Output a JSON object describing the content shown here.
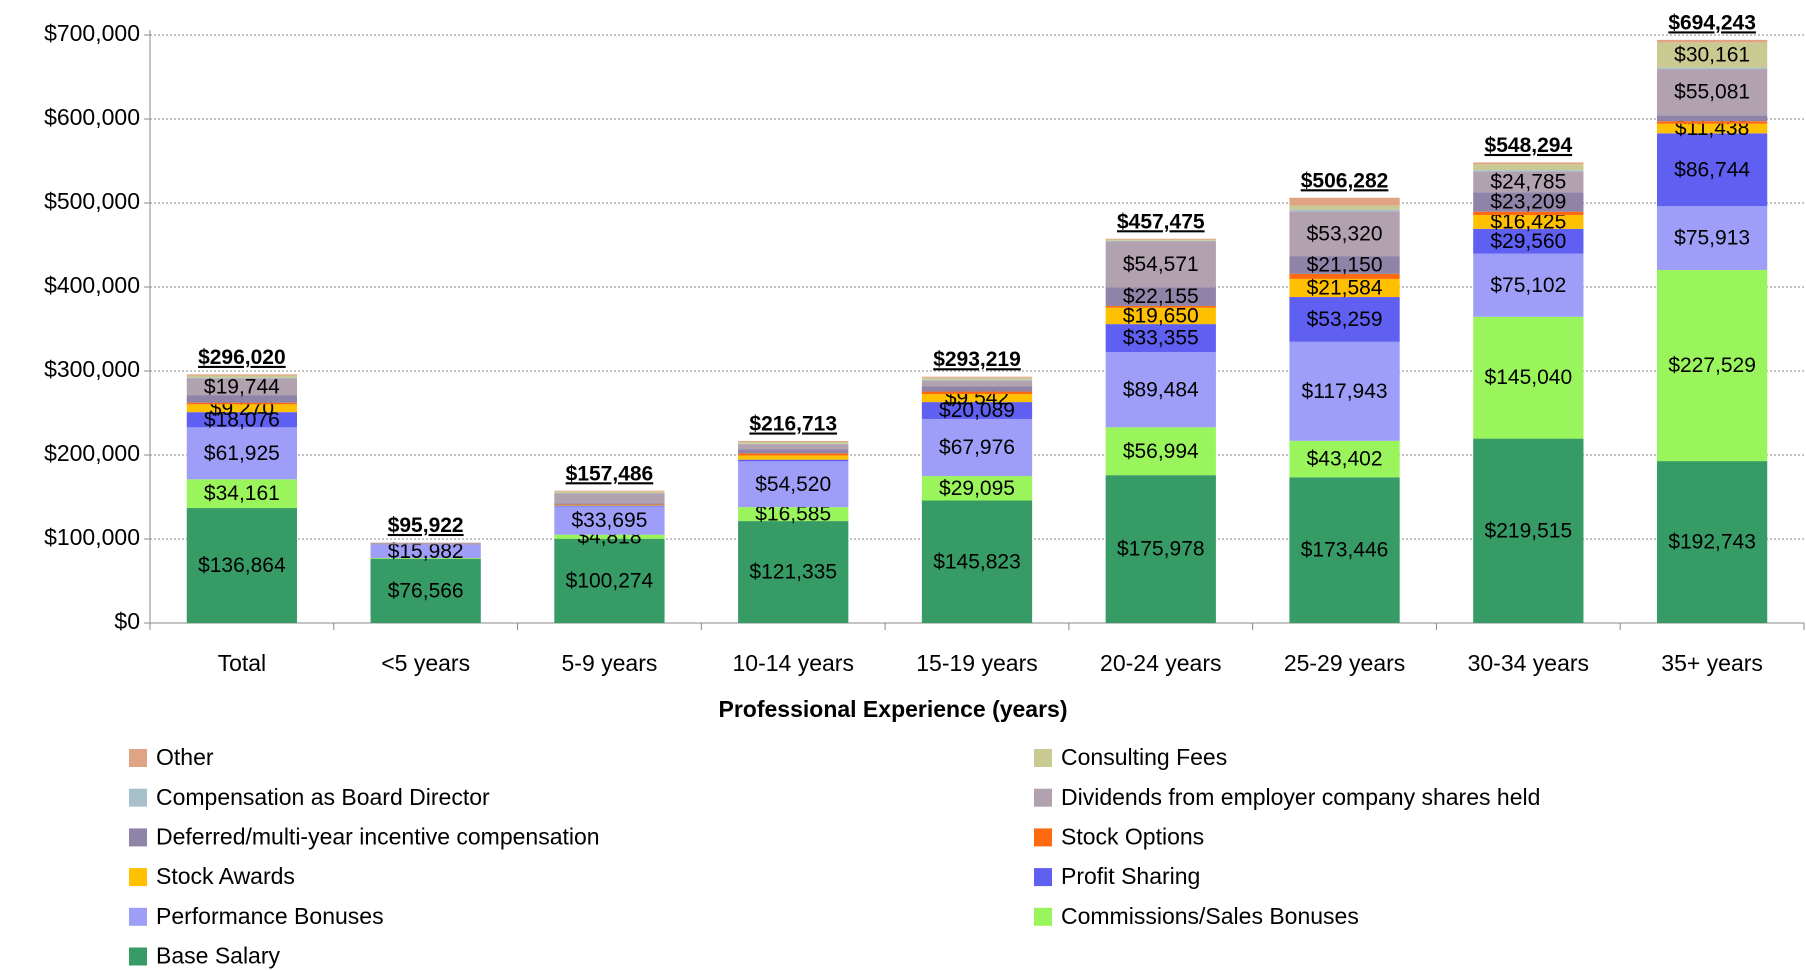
{
  "chart_data": {
    "type": "stacked_bar",
    "x_label": "Professional Experience (years)",
    "categories": [
      "Total",
      "<5 years",
      "5-9 years",
      "10-14 years",
      "15-19 years",
      "20-24 years",
      "25-29 years",
      "30-34 years",
      "35+ years"
    ],
    "ylim": [
      0,
      700000
    ],
    "yticks": [
      {
        "value": 0,
        "label": "$0"
      },
      {
        "value": 100000,
        "label": "$100,000"
      },
      {
        "value": 200000,
        "label": "$200,000"
      },
      {
        "value": 300000,
        "label": "$300,000"
      },
      {
        "value": 400000,
        "label": "$400,000"
      },
      {
        "value": 500000,
        "label": "$500,000"
      },
      {
        "value": 600000,
        "label": "$600,000"
      },
      {
        "value": 700000,
        "label": "$700,000"
      }
    ],
    "grid": true,
    "totals": [
      296020,
      95922,
      157486,
      216713,
      293219,
      457475,
      506282,
      548294,
      694243
    ],
    "total_labels": [
      "$296,020",
      "$95,922",
      "$157,486",
      "$216,713",
      "$293,219",
      "$457,475",
      "$506,282",
      "$548,294",
      "$694,243"
    ],
    "series": [
      {
        "name": "Base Salary",
        "color": "#379b66",
        "values": [
          136864,
          76566,
          100274,
          121335,
          145823,
          175978,
          173446,
          219515,
          192743
        ],
        "value_labels": [
          "$136,864",
          "$76,566",
          "$100,274",
          "$121,335",
          "$145,823",
          "$175,978",
          "$173,446",
          "$219,515",
          "$192,743"
        ]
      },
      {
        "name": "Commissions/Sales Bonuses",
        "color": "#9af55c",
        "values": [
          34161,
          800,
          4818,
          16585,
          29095,
          56994,
          43402,
          145040,
          227529
        ],
        "value_labels": [
          "$34,161",
          null,
          "$4,818",
          "$16,585",
          "$29,095",
          "$56,994",
          "$43,402",
          "$145,040",
          "$227,529"
        ]
      },
      {
        "name": "Performance Bonuses",
        "color": "#9e9ef8",
        "values": [
          61925,
          15982,
          33695,
          54520,
          67976,
          89484,
          117943,
          75102,
          75913
        ],
        "value_labels": [
          "$61,925",
          "$15,982",
          "$33,695",
          "$54,520",
          "$67,976",
          "$89,484",
          "$117,943",
          "$75,102",
          "$75,913"
        ]
      },
      {
        "name": "Profit Sharing",
        "color": "#5f5ff2",
        "values": [
          18076,
          500,
          1000,
          2000,
          20089,
          33355,
          53259,
          29560,
          86744
        ],
        "value_labels": [
          "$18,076",
          null,
          null,
          null,
          "$20,089",
          "$33,355",
          "$53,259",
          "$29,560",
          "$86,744"
        ]
      },
      {
        "name": "Stock Awards",
        "color": "#ffc000",
        "values": [
          9270,
          300,
          800,
          5000,
          9542,
          19650,
          21584,
          16425,
          11438
        ],
        "value_labels": [
          "$9,270",
          null,
          null,
          null,
          "$9,542",
          "$19,650",
          "$21,584",
          "$16,425",
          "$11,438"
        ]
      },
      {
        "name": "Stock Options",
        "color": "#ff6a10",
        "values": [
          2000,
          100,
          500,
          2500,
          3000,
          2000,
          6000,
          4000,
          3000
        ],
        "value_labels": [
          null,
          null,
          null,
          null,
          null,
          null,
          null,
          null,
          null
        ]
      },
      {
        "name": "Deferred/multi-year incentive compensation",
        "color": "#8f84a8",
        "values": [
          9000,
          400,
          1500,
          5000,
          6000,
          22155,
          21150,
          23209,
          7000
        ],
        "value_labels": [
          null,
          null,
          null,
          null,
          null,
          "$22,155",
          "$21,150",
          "$23,209",
          null
        ]
      },
      {
        "name": "Dividends from employer company shares held",
        "color": "#b2a2b0",
        "values": [
          19744,
          900,
          12000,
          6000,
          7000,
          54571,
          53320,
          24785,
          55081
        ],
        "value_labels": [
          "$19,744",
          null,
          null,
          null,
          null,
          "$54,571",
          "$53,320",
          "$24,785",
          "$55,081"
        ]
      },
      {
        "name": "Compensation as Board Director",
        "color": "#a8c0cb",
        "values": [
          1000,
          100,
          300,
          500,
          1000,
          800,
          2000,
          1500,
          1634
        ],
        "value_labels": [
          null,
          null,
          null,
          null,
          null,
          null,
          null,
          null,
          null
        ]
      },
      {
        "name": "Consulting Fees",
        "color": "#c9c992",
        "values": [
          2500,
          200,
          1500,
          2000,
          2500,
          1500,
          5000,
          7000,
          30161
        ],
        "value_labels": [
          null,
          null,
          null,
          null,
          null,
          null,
          null,
          null,
          "$30,161"
        ]
      },
      {
        "name": "Other",
        "color": "#e0a383",
        "values": [
          1480,
          74,
          1099,
          1273,
          1194,
          988,
          9178,
          2158,
          3000
        ],
        "value_labels": [
          null,
          null,
          null,
          null,
          null,
          null,
          null,
          null,
          null
        ]
      }
    ]
  }
}
